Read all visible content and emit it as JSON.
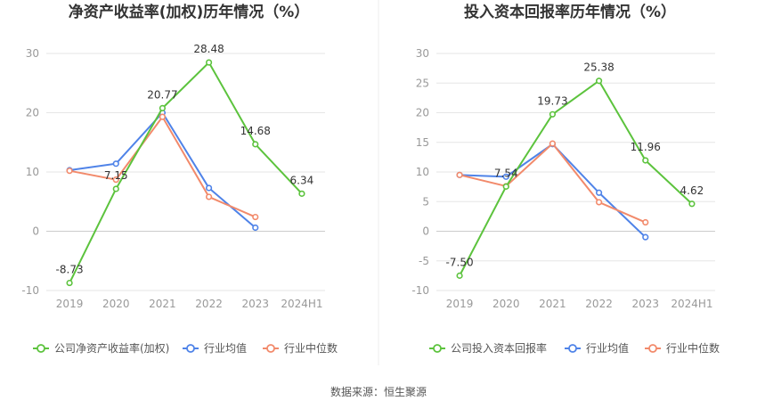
{
  "colors": {
    "company": "#5cc33d",
    "industry_avg": "#4f83e8",
    "industry_median": "#f28a6b",
    "axis_text": "#999999",
    "grid": "#e6e6e6",
    "title": "#333333"
  },
  "source_note": "数据来源：恒生聚源",
  "chart_data": [
    {
      "type": "line",
      "title": "净资产收益率(加权)历年情况（%）",
      "categories": [
        "2019",
        "2020",
        "2021",
        "2022",
        "2023",
        "2024H1"
      ],
      "ylim": [
        -10,
        30
      ],
      "yticks": [
        -10,
        0,
        10,
        20,
        30
      ],
      "grid": true,
      "legend": "bottom",
      "series": [
        {
          "name": "公司净资产收益率(加权)",
          "color": "#5cc33d",
          "labels": true,
          "values": [
            -8.73,
            7.15,
            20.77,
            28.48,
            14.68,
            6.34
          ]
        },
        {
          "name": "行业均值",
          "color": "#4f83e8",
          "labels": false,
          "values": [
            10.3,
            11.4,
            20.0,
            7.3,
            0.6,
            null
          ]
        },
        {
          "name": "行业中位数",
          "color": "#f28a6b",
          "labels": false,
          "values": [
            10.2,
            8.7,
            19.3,
            5.8,
            2.4,
            null
          ]
        }
      ]
    },
    {
      "type": "line",
      "title": "投入资本回报率历年情况（%）",
      "categories": [
        "2019",
        "2020",
        "2021",
        "2022",
        "2023",
        "2024H1"
      ],
      "ylim": [
        -10,
        30
      ],
      "yticks": [
        -10,
        -5,
        0,
        5,
        10,
        15,
        20,
        25,
        30
      ],
      "grid": true,
      "legend": "bottom",
      "series": [
        {
          "name": "公司投入资本回报率",
          "color": "#5cc33d",
          "labels": true,
          "values": [
            -7.5,
            7.54,
            19.73,
            25.38,
            11.96,
            4.62
          ]
        },
        {
          "name": "行业均值",
          "color": "#4f83e8",
          "labels": false,
          "values": [
            9.5,
            9.2,
            14.7,
            6.5,
            -1.0,
            null
          ]
        },
        {
          "name": "行业中位数",
          "color": "#f28a6b",
          "labels": false,
          "values": [
            9.5,
            7.6,
            14.8,
            4.9,
            1.5,
            null
          ]
        }
      ]
    }
  ]
}
